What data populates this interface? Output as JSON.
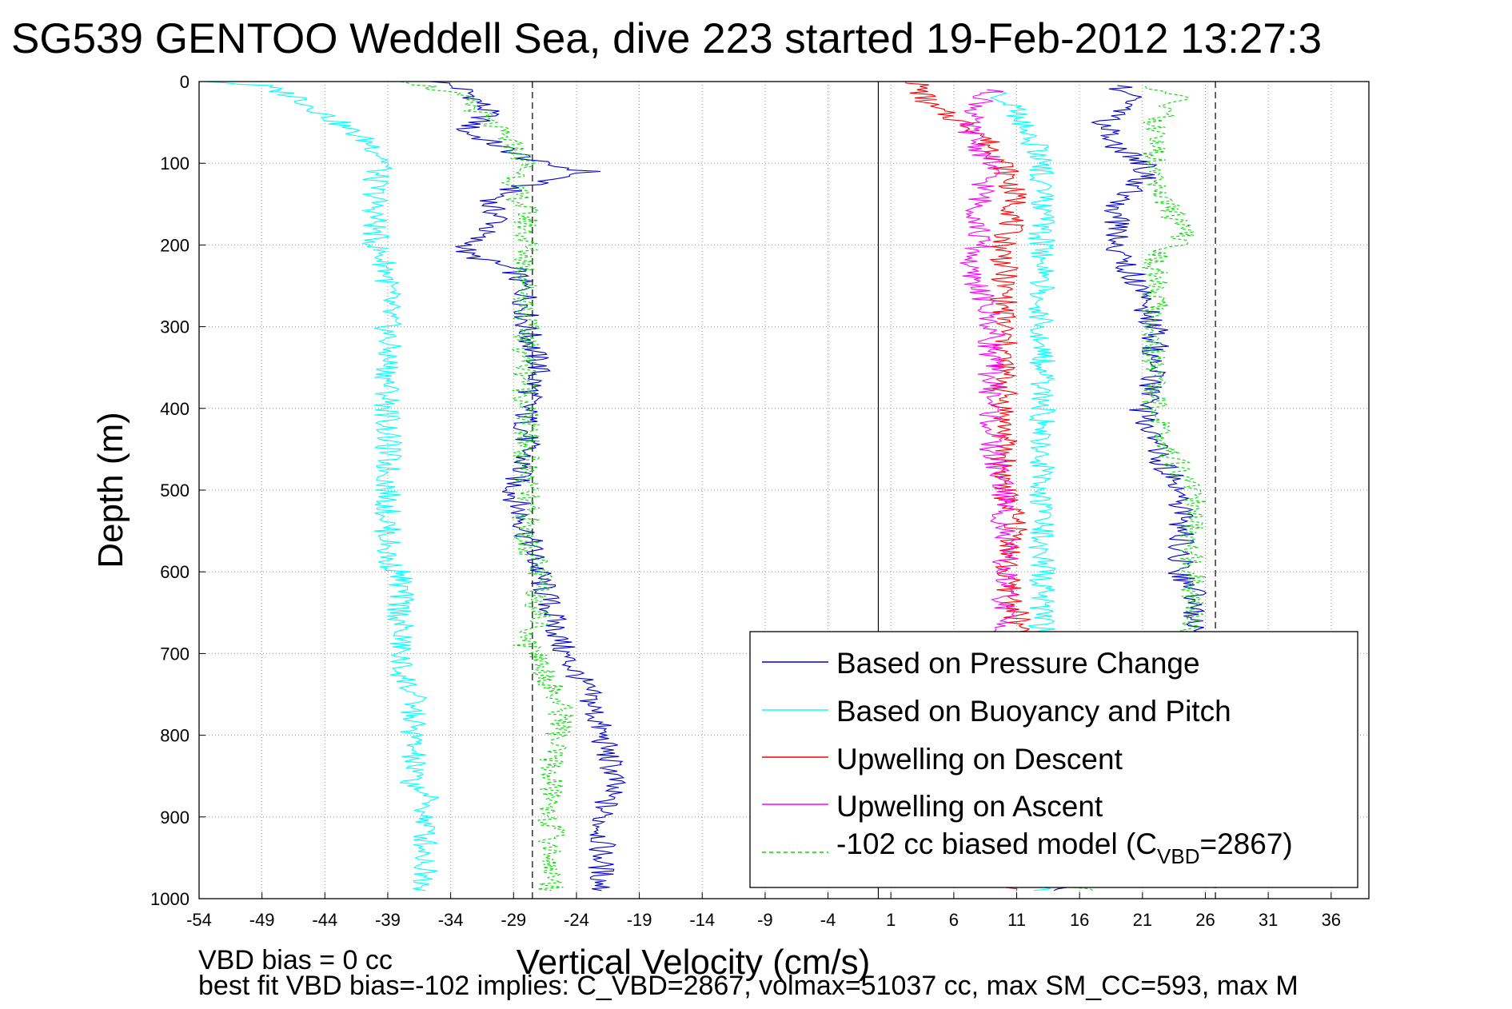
{
  "chart_data": {
    "type": "line",
    "title": "SG539 GENTOO Weddell Sea, dive 223 started 19-Feb-2012 13:27:3",
    "xlabel": "Vertical Velocity (cm/s)",
    "ylabel": "Depth (m)",
    "xlim": [
      -54,
      39
    ],
    "ylim": [
      0,
      1000
    ],
    "y_reversed": true,
    "grid": true,
    "x_ticks": [
      -54,
      -49,
      -44,
      -39,
      -34,
      -29,
      -24,
      -19,
      -14,
      -9,
      -4,
      1,
      6,
      11,
      16,
      21,
      26,
      31,
      36
    ],
    "y_ticks": [
      0,
      100,
      200,
      300,
      400,
      500,
      600,
      700,
      800,
      900,
      1000
    ],
    "reference_lines": {
      "solid_x": [
        0
      ],
      "dashed_x": [
        -27.5,
        26.8
      ]
    },
    "legend": {
      "placement": "bottom-right",
      "entries": [
        {
          "label": "Based on Pressure Change",
          "color": "#0000cc",
          "style": "solid"
        },
        {
          "label": "Based on Buoyancy and Pitch",
          "color": "#00ffff",
          "style": "solid"
        },
        {
          "label": "Upwelling on Descent",
          "color": "#ff0000",
          "style": "solid"
        },
        {
          "label": "Upwelling on Ascent",
          "color": "#ff00ff",
          "style": "solid"
        },
        {
          "label_pre": "-102 cc biased model (C",
          "label_sub": "VBD",
          "label_post": "=2867)",
          "color": "#00dd00",
          "style": "dashed"
        }
      ]
    },
    "series": [
      {
        "key": "pressure_descent",
        "color": "#0000cc",
        "style": "solid",
        "depth": [
          0,
          10,
          20,
          40,
          60,
          80,
          100,
          110,
          130,
          150,
          170,
          190,
          210,
          230,
          260,
          300,
          350,
          400,
          450,
          500,
          550,
          600,
          650,
          700,
          750,
          800,
          850,
          900,
          950,
          990
        ],
        "velocity": [
          -35,
          -33,
          -32,
          -31,
          -33,
          -30,
          -27,
          -23,
          -29,
          -31,
          -30,
          -32,
          -33,
          -29,
          -28,
          -28,
          -27,
          -28,
          -28,
          -29,
          -28,
          -27,
          -26,
          -25,
          -23,
          -22,
          -21,
          -22,
          -22,
          -22
        ]
      },
      {
        "key": "pressure_ascent",
        "color": "#0000cc",
        "style": "solid",
        "depth": [
          990,
          950,
          900,
          850,
          800,
          750,
          700,
          680,
          650,
          620,
          600,
          550,
          520,
          500,
          450,
          400,
          350,
          300,
          270,
          230,
          200,
          180,
          150,
          120,
          100,
          80,
          50,
          30,
          15,
          5
        ],
        "velocity": [
          15,
          19,
          22,
          24,
          25,
          26,
          25,
          25,
          25,
          25,
          24,
          24,
          24,
          24,
          22,
          21,
          22,
          22,
          21,
          20,
          19,
          19,
          19,
          21,
          21,
          19,
          18,
          20,
          20,
          19
        ]
      },
      {
        "key": "buoyancy_descent",
        "color": "#00ffff",
        "style": "solid",
        "depth": [
          0,
          5,
          10,
          20,
          40,
          60,
          80,
          100,
          112,
          130,
          160,
          200,
          230,
          260,
          295,
          300,
          350,
          400,
          470,
          480,
          530,
          540,
          590,
          600,
          650,
          660,
          690,
          700,
          720,
          750,
          800,
          820,
          860,
          870,
          920,
          930,
          970,
          990
        ],
        "velocity": [
          -53,
          -49,
          -48,
          -46,
          -44,
          -42,
          -40,
          -39,
          -40,
          -40,
          -40,
          -40,
          -39,
          -39,
          -39,
          -39,
          -39,
          -39,
          -39,
          -39,
          -39,
          -39,
          -39,
          -38,
          -38,
          -38,
          -38,
          -38,
          -38,
          -37,
          -37,
          -37,
          -37,
          -36,
          -36,
          -36,
          -36,
          -36
        ]
      },
      {
        "key": "buoyancy_ascent",
        "color": "#00ffff",
        "style": "solid",
        "depth": [
          990,
          950,
          900,
          850,
          800,
          750,
          700,
          650,
          600,
          550,
          500,
          450,
          400,
          350,
          300,
          250,
          200,
          150,
          100,
          60,
          40,
          20,
          10
        ],
        "velocity": [
          13,
          13,
          13,
          13,
          13,
          13,
          13,
          13,
          13,
          13,
          13,
          13,
          13,
          13,
          13,
          13,
          13,
          13,
          13,
          12,
          11,
          10,
          9
        ]
      },
      {
        "key": "model_descent",
        "color": "#00dd00",
        "style": "dashed",
        "depth": [
          0,
          20,
          50,
          80,
          100,
          130,
          160,
          200,
          240,
          280,
          320,
          400,
          480,
          520,
          560,
          600,
          660,
          690,
          700,
          740,
          780,
          820,
          860,
          900,
          950,
          990
        ],
        "velocity": [
          -37,
          -33,
          -31,
          -29,
          -28,
          -29,
          -28,
          -28,
          -28,
          -28,
          -28,
          -28,
          -28,
          -28,
          -28,
          -27,
          -27,
          -28,
          -27,
          -26,
          -25,
          -26,
          -26,
          -26,
          -26,
          -26
        ]
      },
      {
        "key": "model_ascent",
        "color": "#00dd00",
        "style": "dashed",
        "depth": [
          990,
          900,
          800,
          700,
          650,
          600,
          550,
          500,
          450,
          400,
          350,
          300,
          250,
          210,
          200,
          180,
          150,
          120,
          100,
          80,
          50,
          20,
          5
        ],
        "velocity": [
          16,
          22,
          24,
          25,
          25,
          25,
          25,
          25,
          23,
          22,
          22,
          22,
          22,
          22,
          24,
          24,
          23,
          22,
          22,
          22,
          22,
          24,
          21
        ]
      },
      {
        "key": "upwelling_descent",
        "color": "#ff0000",
        "style": "solid",
        "depth": [
          0,
          30,
          60,
          100,
          150,
          200,
          250,
          300,
          350,
          400,
          450,
          500,
          550,
          600,
          650,
          700,
          800,
          900,
          990
        ],
        "velocity": [
          3,
          4,
          8,
          10,
          11,
          10,
          10,
          10,
          10,
          10,
          10,
          10,
          11,
          10,
          11,
          11,
          11,
          11,
          11
        ]
      },
      {
        "key": "upwelling_ascent",
        "color": "#ff00ff",
        "style": "solid",
        "depth": [
          10,
          30,
          50,
          80,
          100,
          150,
          200,
          230,
          250,
          300,
          350,
          400,
          450,
          500,
          550,
          600,
          650,
          690
        ],
        "velocity": [
          9,
          8,
          7,
          8,
          9,
          8,
          8,
          7,
          8,
          9,
          9,
          9,
          9,
          10,
          10,
          10,
          10,
          10
        ]
      }
    ],
    "footer_lines": [
      "VBD bias = 0 cc",
      "best fit VBD bias=-102 implies: C_VBD=2867, volmax=51037 cc, max SM_CC=593, max M"
    ]
  }
}
